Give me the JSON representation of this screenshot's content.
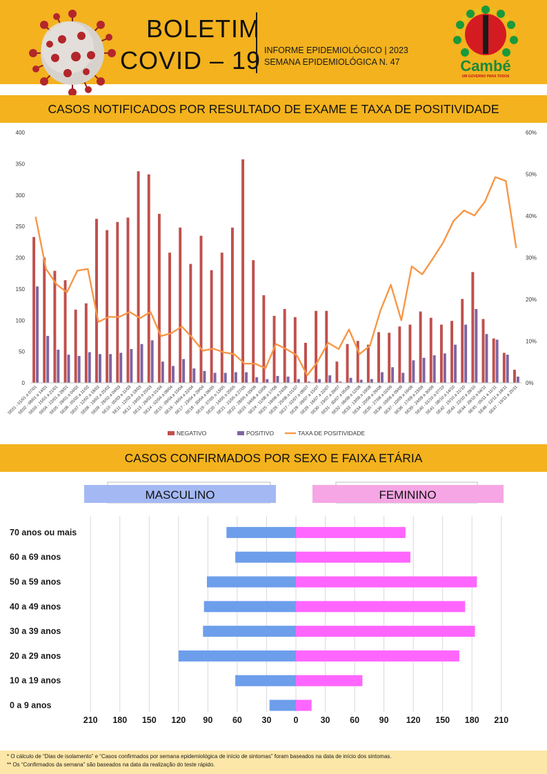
{
  "header": {
    "title_line1": "BOLETIM",
    "title_line2": "COVID – 19",
    "info_line1": "INFORME EPIDEMIOLÓGICO | 2023",
    "info_line2": "SEMANA EPIDEMIOLÓGICA  N. 47",
    "logo_text": "Cambé",
    "logo_tagline": "UM GOVERNO PARA TODOS"
  },
  "section1": {
    "title": "CASOS NOTIFICADOS POR RESULTADO DE EXAME E TAXA DE POSITIVIDADE"
  },
  "section2": {
    "title": "CASOS CONFIRMADOS POR SEXO E FAIXA ETÁRIA"
  },
  "footer": {
    "note1": "* O cálculo de “Dias de isolamento” e “Casos confirmados por semana epidemiológica de início de sintomas” foram baseados na data de início dos sintomas.",
    "note2": "** Os “Confirmados da semana” são baseados na data da realização do teste rápido."
  },
  "colors": {
    "band": "#f3b21e",
    "negativo": "#c0504d",
    "positivo": "#8064a2",
    "taxa": "#f79646",
    "masculino": "#6d9eeb",
    "feminino": "#ff66ff",
    "masc_label_bg": "#a4b9f4",
    "fem_label_bg": "#f6a6e4"
  },
  "chart_data": [
    {
      "type": "bar",
      "categories": [
        "SE01 - 01/01 a 07/01",
        "SE02 - 08/01 a 14/01",
        "SE03 - 15/01 a 21/01",
        "SE04 - 22/01 a 28/01",
        "SE05 - 29/01 a 04/02",
        "SE06 - 05/02 a 11/02",
        "SE07 - 12/02 a 18/02",
        "SE08 - 19/02 a 25/02",
        "SE09 - 26/02 a 04/03",
        "SE10 - 05/03 a 11/03",
        "SE11 - 12/03 a 18/03",
        "SE12 - 19/03 a 25/03",
        "SE13 - 26/03 a 01/04",
        "SE14 - 02/04 a 08/04",
        "SE15 - 09/04 a 15/04",
        "SE16 - 16/04 a 22/04",
        "SE17 - 23/04 a 29/04",
        "SE18 - 30/04 a 06/05",
        "SE19 - 07/05 a 13/05",
        "SE20 - 14/05 a 20/05",
        "SE21 - 21/05 a 27/05",
        "SE22 - 28/05 a 03/06",
        "SE23 - 04/06 a 10/06",
        "SE24 - 11/06 a 17/06",
        "SE25 - 18/06 a 24/06",
        "SE26 - 25/06 a 01/07",
        "SE27 - 02/07 a 08/07",
        "SE28 - 09/07 a 15/07",
        "SE29 - 16/07 a 22/07",
        "SE30 - 23/07 a 29/07",
        "SE31 - 30/07 a 05/08",
        "SE32 - 06/08 a 12/08",
        "SE33 - 13/08 a 19/08",
        "SE34 - 20/08 a 26/08",
        "SE35 - 27/08 a 02/09",
        "SE36 - 03/09 a 09/09",
        "SE37 - 10/09 a 16/09",
        "SE38 - 17/09 a 23/09",
        "SE39 - 24/09 a 30/09",
        "SE40 - 01/10 a 07/10",
        "SE41 - 08/10 a 14/10",
        "SE42 - 15/10 a 21/10",
        "SE43 - 22/10 a 28/10",
        "SE44 - 29/10 a 04/11",
        "SE45 - 05/11 a 11/11",
        "SE46 - 12/11 a 18/11",
        "SE47 - 19/11 a 25/11"
      ],
      "series": [
        {
          "name": "NEGATIVO",
          "values": [
            233,
            200,
            179,
            164,
            117,
            127,
            262,
            244,
            257,
            264,
            338,
            333,
            270,
            208,
            248,
            190,
            235,
            180,
            208,
            248,
            357,
            196,
            140,
            107,
            118,
            105,
            64,
            115,
            115,
            34,
            62,
            67,
            61,
            81,
            80,
            90,
            93,
            114,
            104,
            93,
            99,
            134,
            177,
            102,
            71,
            48,
            21
          ]
        },
        {
          "name": "POSITIVO",
          "values": [
            154,
            75,
            53,
            45,
            43,
            49,
            46,
            46,
            48,
            54,
            62,
            68,
            34,
            27,
            38,
            23,
            19,
            16,
            16,
            17,
            17,
            9,
            6,
            11,
            10,
            6,
            2,
            6,
            12,
            2,
            8,
            5,
            6,
            17,
            25,
            16,
            36,
            40,
            44,
            47,
            61,
            93,
            118,
            78,
            69,
            45,
            10
          ]
        },
        {
          "name": "TAXA DE POSITIVIDADE",
          "axis": "right",
          "unit": "%",
          "values": [
            39.8,
            27.3,
            23.6,
            21.7,
            26.9,
            27.3,
            14.6,
            15.8,
            15.8,
            17.0,
            15.5,
            17.0,
            11.2,
            11.9,
            13.5,
            10.8,
            7.7,
            8.2,
            7.3,
            6.9,
            4.6,
            4.6,
            3.5,
            9.3,
            8.1,
            6.6,
            1.8,
            5.1,
            9.6,
            8.1,
            12.8,
            6.9,
            8.9,
            17.3,
            23.5,
            15.0,
            27.9,
            26.0,
            29.7,
            33.6,
            38.8,
            41.3,
            40.1,
            43.4,
            49.3,
            48.4,
            32.3
          ]
        }
      ],
      "ylim": [
        0,
        400
      ],
      "yticks": [
        0,
        50,
        100,
        150,
        200,
        250,
        300,
        350,
        400
      ],
      "y2lim": [
        0,
        60
      ],
      "y2ticks": [
        "0%",
        "10%",
        "20%",
        "30%",
        "40%",
        "50%",
        "60%"
      ],
      "legend": [
        "NEGATIVO",
        "POSITIVO",
        "TAXA DE POSITIVIDADE"
      ],
      "legend_position": "bottom",
      "grid": false
    },
    {
      "type": "bar",
      "orientation": "horizontal",
      "categories": [
        "70 anos ou mais",
        "60 a 69 anos",
        "50 a 59 anos",
        "40 a 49 anos",
        "30 a 39 anos",
        "20 a 29 anos",
        "10 a 19 anos",
        "0 a 9 anos"
      ],
      "series": [
        {
          "name": "MASCULINO",
          "side": "left",
          "values": [
            71,
            62,
            91,
            94,
            95,
            120,
            62,
            27
          ]
        },
        {
          "name": "FEMININO",
          "side": "right",
          "values": [
            112,
            117,
            185,
            173,
            183,
            167,
            68,
            16
          ]
        }
      ],
      "xticks": [
        210,
        180,
        150,
        120,
        90,
        60,
        30,
        0,
        30,
        60,
        90,
        120,
        150,
        180,
        210
      ],
      "xlim": [
        -225,
        225
      ],
      "grid": true
    }
  ]
}
